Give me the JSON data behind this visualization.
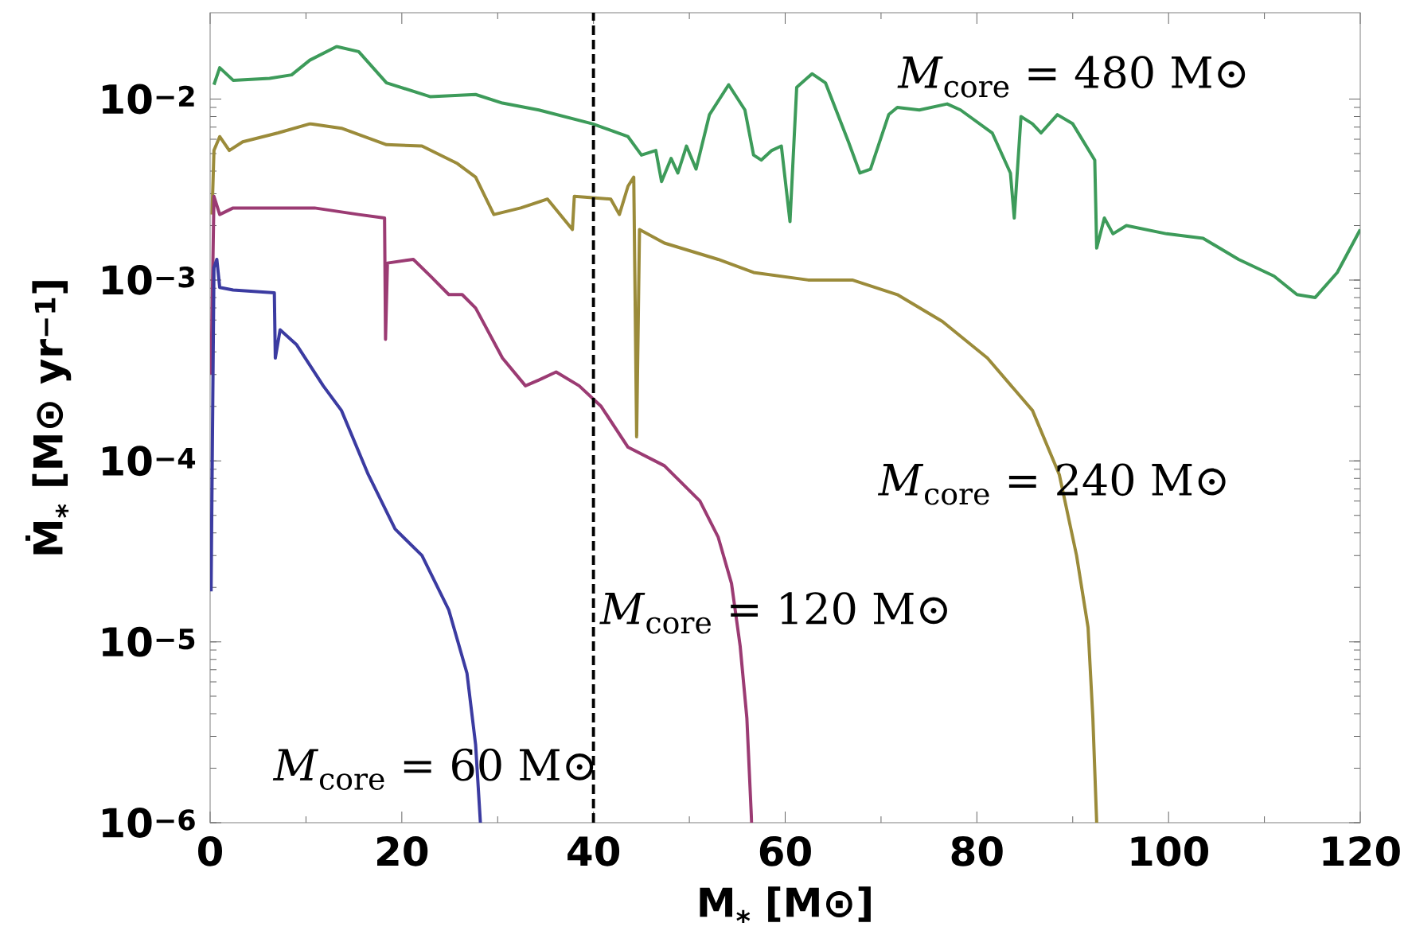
{
  "chart_data": {
    "type": "line",
    "xlabel": "**M$_{*}$ [M⊙]**",
    "ylabel": "**Ṁ$_{*}$ [M⊙ yr$^{−1}$]**",
    "log": "y",
    "grid": false,
    "line_style": "solid",
    "xlim": [
      0,
      120
    ],
    "xticks": [
      0,
      20,
      40,
      60,
      80,
      100,
      120
    ],
    "ylim": [
      1e-06,
      0.03
    ],
    "yticks": [
      {
        "value": 1e-06,
        "label": "10$^{−6}$"
      },
      {
        "value": 1e-05,
        "label": "10$^{−5}$"
      },
      {
        "value": 0.0001,
        "label": "10$^{−4}$"
      },
      {
        "value": 0.001,
        "label": "10$^{−3}$"
      },
      {
        "value": 0.01,
        "label": "10$^{−2}$"
      }
    ],
    "series": [
      {
        "color": "#3d9b5a",
        "x": [
          0.4,
          1,
          2.4,
          6.2,
          8.5,
          10.4,
          13.2,
          15.5,
          18.4,
          23,
          27.7,
          30.5,
          34.3,
          39.9,
          43.6,
          45,
          46.5,
          47.1,
          48.1,
          48.8,
          49.7,
          50.7,
          52.1,
          54.1,
          55.8,
          56.7,
          57.5,
          58.6,
          59.6,
          60.5,
          61.2,
          62.8,
          64.2,
          66.6,
          67.8,
          68.9,
          70.8,
          71.7,
          74,
          76.9,
          78.3,
          81.6,
          83.5,
          83.9,
          84.6,
          85.8,
          86.7,
          88.4,
          90,
          92.3,
          92.5,
          93.3,
          94.2,
          95.6,
          99.8,
          103.6,
          107.3,
          111,
          113.4,
          115.3,
          117.6,
          120
        ],
        "values": [
          0.012,
          0.0149,
          0.0127,
          0.013,
          0.0136,
          0.0164,
          0.0195,
          0.0183,
          0.0123,
          0.0103,
          0.0106,
          0.0095,
          0.0087,
          0.0073,
          0.0062,
          0.0049,
          0.0052,
          0.0035,
          0.0047,
          0.0039,
          0.0055,
          0.0041,
          0.0082,
          0.012,
          0.0087,
          0.0049,
          0.0046,
          0.0052,
          0.0055,
          0.0021,
          0.0116,
          0.0138,
          0.0123,
          0.0058,
          0.0039,
          0.0041,
          0.0082,
          0.009,
          0.0087,
          0.0094,
          0.0087,
          0.0065,
          0.0039,
          0.0022,
          0.008,
          0.0073,
          0.0065,
          0.0082,
          0.0073,
          0.0046,
          0.0015,
          0.0022,
          0.0018,
          0.002,
          0.0018,
          0.0017,
          0.0013,
          0.00105,
          0.00083,
          0.0008,
          0.0011,
          0.0019
        ]
      },
      {
        "color": "#9b8b3a",
        "x": [
          0.2,
          0.4,
          1,
          2,
          3.4,
          7.1,
          10.4,
          13.7,
          18.4,
          22.1,
          25.8,
          27.7,
          29.6,
          32.4,
          35.2,
          37.8,
          38,
          41.8,
          42.7,
          43.6,
          44.2,
          44.5,
          44.8,
          47.4,
          53,
          56.7,
          62.4,
          67,
          71.7,
          76.4,
          81.1,
          85.8,
          88.6,
          90.4,
          91.6,
          92.1,
          92.5
        ],
        "values": [
          0.0023,
          0.0052,
          0.0062,
          0.0052,
          0.0058,
          0.0065,
          0.0073,
          0.0069,
          0.0056,
          0.0055,
          0.0044,
          0.0037,
          0.0023,
          0.0025,
          0.0028,
          0.0019,
          0.0029,
          0.0028,
          0.0023,
          0.0033,
          0.0037,
          0.000136,
          0.0019,
          0.0016,
          0.0013,
          0.0011,
          0.001,
          0.001,
          0.00083,
          0.00059,
          0.00037,
          0.00019,
          8.4e-05,
          3e-05,
          1.2e-05,
          3.8e-06,
          1e-06
        ]
      },
      {
        "color": "#9b3b73",
        "x": [
          0.1,
          0.4,
          1,
          2.4,
          6.2,
          10.9,
          15.5,
          18.2,
          18.3,
          18.5,
          21.2,
          23,
          24.9,
          26.3,
          27.7,
          30.5,
          32.9,
          34.3,
          36.1,
          38.5,
          40.8,
          43.6,
          47.4,
          51.1,
          53,
          54.4,
          55.3,
          56,
          56.5
        ],
        "values": [
          0.0003,
          0.0029,
          0.0023,
          0.0025,
          0.0025,
          0.0025,
          0.0023,
          0.0022,
          0.00047,
          0.00124,
          0.0013,
          0.00105,
          0.00083,
          0.00083,
          0.0007,
          0.00037,
          0.00026,
          0.00028,
          0.00031,
          0.00026,
          0.0002,
          0.000119,
          9.4e-05,
          6e-05,
          3.8e-05,
          2.1e-05,
          9.5e-06,
          3.8e-06,
          1e-06
        ]
      },
      {
        "color": "#3b3ba1",
        "x": [
          0.1,
          0.4,
          0.7,
          1,
          2.4,
          6.7,
          6.8,
          7.3,
          9,
          11.8,
          13.7,
          16.5,
          19.3,
          22.1,
          24.9,
          26.8,
          27.7,
          28.2
        ],
        "values": [
          1.9e-05,
          0.00117,
          0.0013,
          0.00091,
          0.00088,
          0.00085,
          0.00037,
          0.00053,
          0.00044,
          0.00026,
          0.00019,
          8.4e-05,
          4.2e-05,
          3e-05,
          1.5e-05,
          6.7e-06,
          2.7e-06,
          1e-06
        ]
      }
    ],
    "ref_lines": [
      {
        "axis": "x",
        "value": 40,
        "color": "#000000",
        "line_style": "dashed"
      }
    ],
    "annotations": [
      "*M*$_{core}$ = 480 M⊙",
      "*M*$_{core}$ = 240 M⊙",
      "*M*$_{core}$ = 120 M⊙",
      "*M*$_{core}$ = 60 M⊙"
    ]
  }
}
